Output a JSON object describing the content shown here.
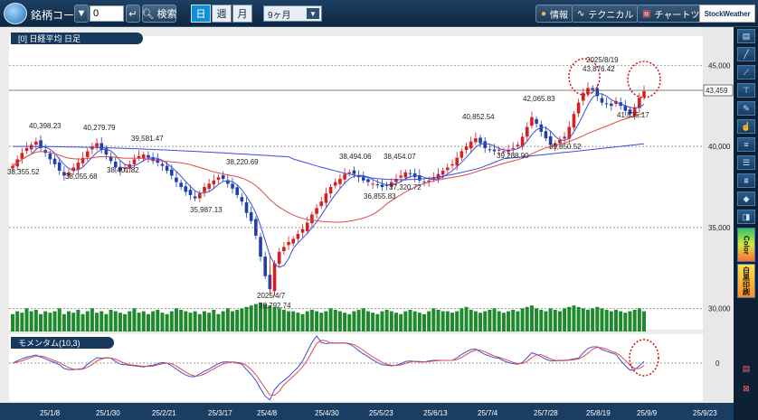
{
  "toolbar": {
    "code_label": "銘柄コード",
    "code_value": "0",
    "search_label": "検索",
    "period_tabs": [
      "日",
      "週",
      "月"
    ],
    "active_tab": "日",
    "range_value": "9ヶ月",
    "info_label": "情報",
    "technical_label": "テクニカル",
    "charttool_label": "チャートツール",
    "brand": "StockWeather"
  },
  "main_panel": {
    "label": "[0] 日経平均 日足"
  },
  "sub_panel": {
    "label": "モメンタム(10,3)"
  },
  "rightbar": {
    "color_label": "Color",
    "bw_label": "白黒印刷"
  },
  "colors": {
    "up": "#d81f1f",
    "down": "#1f3fb0",
    "ma_short": "#3c4fd8",
    "ma_mid": "#e04848",
    "ma_long": "#3c4fd8",
    "volume": "#1e8a2d",
    "highlight": "#d01010"
  },
  "chart_data": {
    "type": "candlestick",
    "y_axis": {
      "ticks": [
        30000,
        35000,
        40000,
        45000
      ],
      "tick_labels": [
        "30,000",
        "35,000",
        "40,000",
        "45,000"
      ],
      "range": [
        28700,
        46800
      ]
    },
    "current_price_label": "43,459",
    "x_tick_labels": [
      "25/1/8",
      "25/1/30",
      "25/2/21",
      "25/3/17",
      "25/4/8",
      "25/4/30",
      "25/5/23",
      "25/6/13",
      "25/7/4",
      "25/7/28",
      "25/8/19",
      "25/9/9",
      "25/9/23"
    ],
    "annotations": [
      "40,398.23",
      "40,279.79",
      "38,355.52",
      "38,055.68",
      "38,401.82",
      "39,581.47",
      "38,220.69",
      "35,987.13",
      "38,494.06",
      "38,454.07",
      "36,855.83",
      "37,320.72",
      "40,852.54",
      "42,065.83",
      "39,288.90",
      "39,850.52",
      "2025/8/19",
      "43,876.42",
      "41,835.17",
      "2025/4/7",
      "30,792.74"
    ],
    "sub_axis_labels": [
      "0"
    ],
    "closes": [
      38800,
      39200,
      39600,
      39900,
      40100,
      40300,
      39900,
      39600,
      39200,
      38900,
      38500,
      38200,
      38400,
      38700,
      39000,
      39300,
      39700,
      40000,
      40200,
      39800,
      39500,
      39100,
      38700,
      38500,
      38700,
      38900,
      39200,
      39400,
      39500,
      39300,
      39100,
      39000,
      38800,
      38500,
      38200,
      37800,
      37500,
      37200,
      37000,
      36800,
      37100,
      37500,
      37700,
      37900,
      38100,
      38000,
      37700,
      37400,
      37000,
      36600,
      35900,
      35400,
      34500,
      33200,
      32000,
      31200,
      32800,
      33500,
      33800,
      34100,
      34300,
      34600,
      34900,
      35300,
      35800,
      36200,
      36600,
      37100,
      37500,
      37800,
      38000,
      38300,
      38400,
      38300,
      38100,
      37900,
      37800,
      37700,
      37600,
      37500,
      37600,
      37800,
      38000,
      38200,
      38400,
      38300,
      38100,
      37900,
      37800,
      37900,
      38100,
      38300,
      38500,
      38700,
      38900,
      39300,
      39700,
      40000,
      40300,
      40500,
      40200,
      39900,
      39800,
      39700,
      39800,
      39700,
      39800,
      39900,
      40100,
      40600,
      41200,
      41800,
      41400,
      40900,
      40500,
      40100,
      40200,
      40400,
      40600,
      41200,
      42000,
      42700,
      43300,
      43600,
      43500,
      43100,
      42700,
      42600,
      42500,
      42800,
      42500,
      42200,
      42000,
      42400,
      43000,
      43400
    ],
    "volume": [
      0.6,
      0.7,
      0.65,
      0.8,
      0.7,
      0.75,
      0.6,
      0.7,
      0.65,
      0.7,
      0.8,
      0.6,
      0.7,
      0.65,
      0.75,
      0.6,
      0.7,
      0.8,
      0.65,
      0.7,
      0.6,
      0.75,
      0.7,
      0.65,
      0.6,
      0.7,
      0.8,
      0.65,
      0.7,
      0.6,
      0.7,
      0.75,
      0.65,
      0.6,
      0.7,
      0.8,
      0.75,
      0.7,
      0.65,
      0.7,
      0.6,
      0.7,
      0.65,
      0.75,
      0.6,
      0.7,
      0.8,
      0.7,
      0.75,
      0.8,
      0.85,
      0.9,
      0.95,
      1.0,
      0.95,
      0.9,
      0.85,
      0.8,
      0.75,
      0.7,
      0.7,
      0.65,
      0.6,
      0.7,
      0.75,
      0.7,
      0.65,
      0.7,
      0.8,
      0.75,
      0.7,
      0.65,
      0.6,
      0.7,
      0.75,
      0.8,
      0.7,
      0.65,
      0.6,
      0.7,
      0.75,
      0.7,
      0.65,
      0.6,
      0.7,
      0.75,
      0.7,
      0.65,
      0.6,
      0.7,
      0.8,
      0.75,
      0.7,
      0.7,
      0.65,
      0.7,
      0.8,
      0.85,
      0.75,
      0.7,
      0.65,
      0.7,
      0.75,
      0.8,
      0.7,
      0.65,
      0.7,
      0.75,
      0.7,
      0.8,
      0.85,
      0.9,
      0.8,
      0.75,
      0.7,
      0.8,
      0.75,
      0.7,
      0.8,
      0.85,
      0.9,
      0.85,
      0.8,
      0.75,
      0.8,
      0.85,
      0.8,
      0.75,
      0.7,
      0.75,
      0.7,
      0.65,
      0.7,
      0.75,
      0.8,
      0.7
    ]
  }
}
